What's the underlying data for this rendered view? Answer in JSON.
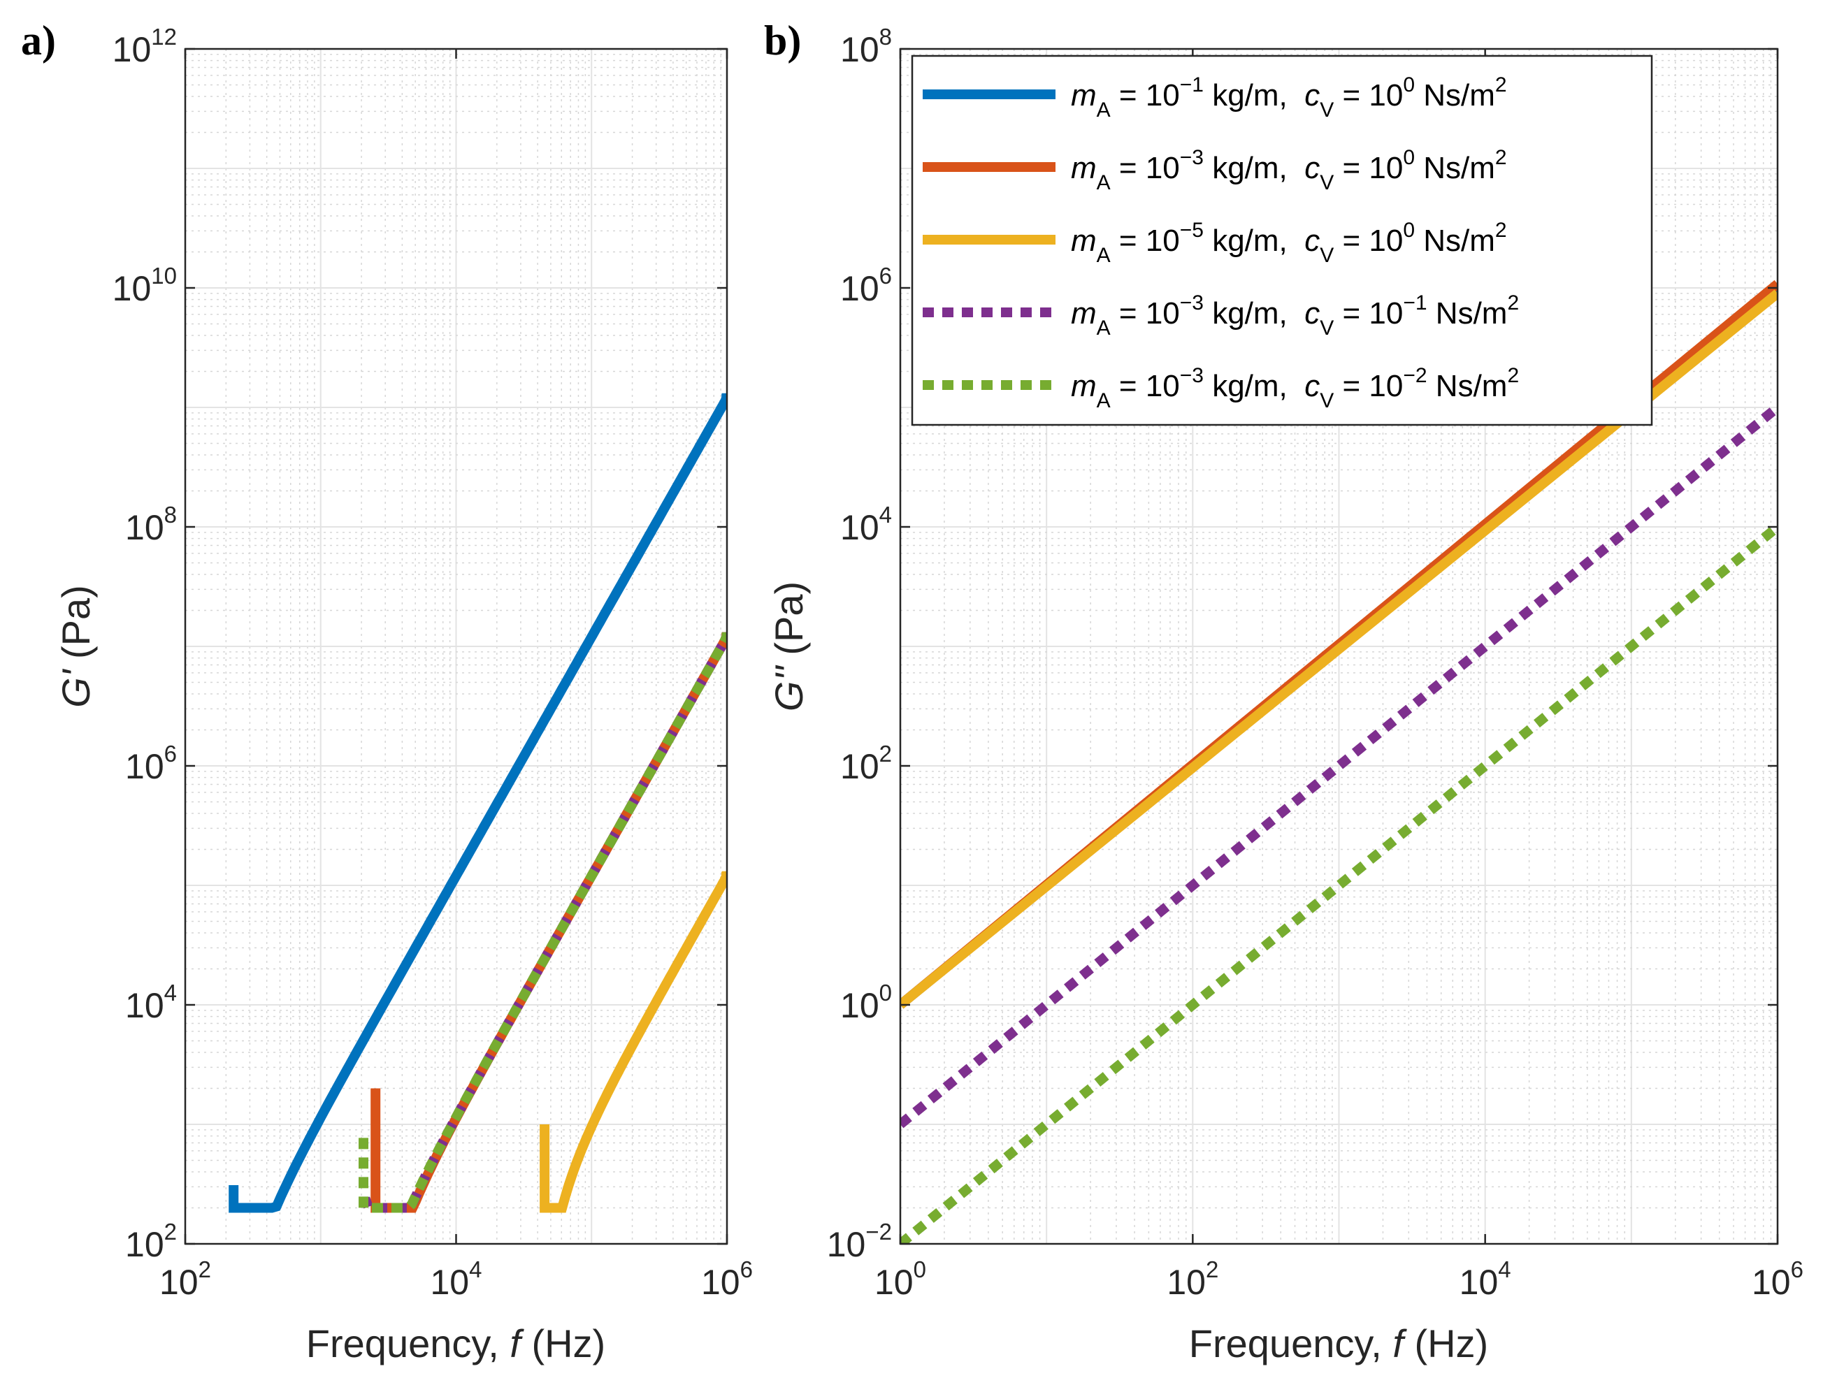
{
  "chart_data": [
    {
      "id": "a",
      "panel_label": "a)",
      "type": "line",
      "x_scale": "log",
      "y_scale": "log",
      "xlim": [
        100,
        1000000
      ],
      "ylim": [
        100,
        1000000000000
      ],
      "xlabel": {
        "text": "Frequency, ",
        "var": "f",
        "unit": " (Hz)"
      },
      "ylabel": {
        "var": "G'",
        "unit": " (Pa)"
      },
      "xticks": [
        {
          "base": "10",
          "exp": "2"
        },
        {
          "base": "10",
          "exp": "4"
        },
        {
          "base": "10",
          "exp": "6"
        }
      ],
      "yticks": [
        {
          "base": "10",
          "exp": "2"
        },
        {
          "base": "10",
          "exp": "4"
        },
        {
          "base": "10",
          "exp": "6"
        },
        {
          "base": "10",
          "exp": "8"
        },
        {
          "base": "10",
          "exp": "10"
        },
        {
          "base": "10",
          "exp": "12"
        }
      ],
      "grid": true,
      "series": [
        {
          "name": "mA=1e-1, cV=1e0",
          "color": "#0072BD",
          "dash": "solid",
          "A": 0.0012,
          "f0": 227.5,
          "x": [
            227.5,
            1000000
          ]
        },
        {
          "name": "mA=1e-3, cV=1e0",
          "color": "#D95319",
          "dash": "solid",
          "A": 1.2e-05,
          "f0": 2540,
          "x": [
            2540,
            1000000
          ]
        },
        {
          "name": "mA=1e-5, cV=1e0",
          "color": "#EDB120",
          "dash": "solid",
          "A": 1.2e-07,
          "f0": 45000,
          "x": [
            45000,
            1000000
          ]
        },
        {
          "name": "mA=1e-3, cV=1e-1",
          "color": "#7E2F8E",
          "dash": "dotted",
          "A": 1.2e-05,
          "f0": 2130,
          "x": [
            2130,
            1000000
          ]
        },
        {
          "name": "mA=1e-3, cV=1e-2",
          "color": "#77AC30",
          "dash": "dotted",
          "A": 1.2e-05,
          "f0": 2070,
          "x": [
            2070,
            1000000
          ]
        }
      ]
    },
    {
      "id": "b",
      "panel_label": "b)",
      "type": "line",
      "x_scale": "log",
      "y_scale": "log",
      "xlim": [
        1,
        1000000
      ],
      "ylim": [
        0.01,
        100000000
      ],
      "xlabel": {
        "text": "Frequency, ",
        "var": "f",
        "unit": " (Hz)"
      },
      "ylabel": {
        "var": "G''",
        "unit": " (Pa)"
      },
      "xticks": [
        {
          "base": "10",
          "exp": "0"
        },
        {
          "base": "10",
          "exp": "2"
        },
        {
          "base": "10",
          "exp": "4"
        },
        {
          "base": "10",
          "exp": "6"
        }
      ],
      "yticks": [
        {
          "base": "10",
          "exp": "−2"
        },
        {
          "base": "10",
          "exp": "0"
        },
        {
          "base": "10",
          "exp": "2"
        },
        {
          "base": "10",
          "exp": "4"
        },
        {
          "base": "10",
          "exp": "6"
        },
        {
          "base": "10",
          "exp": "8"
        }
      ],
      "grid": true,
      "series": [
        {
          "name": "mA=1e-1, cV=1e0",
          "color": "#0072BD",
          "dash": "solid",
          "x": [
            1,
            1000000
          ],
          "y": [
            1,
            1000000
          ]
        },
        {
          "name": "mA=1e-3, cV=1e0",
          "color": "#D95319",
          "dash": "solid",
          "x": [
            1,
            1000000
          ],
          "y": [
            1,
            1080000
          ]
        },
        {
          "name": "mA=1e-5, cV=1e0",
          "color": "#EDB120",
          "dash": "solid",
          "x": [
            1,
            1000000
          ],
          "y": [
            1,
            900000
          ]
        },
        {
          "name": "mA=1e-3, cV=1e-1",
          "color": "#7E2F8E",
          "dash": "dotted",
          "x": [
            1,
            1000000
          ],
          "y": [
            0.1,
            100000
          ]
        },
        {
          "name": "mA=1e-3, cV=1e-2",
          "color": "#77AC30",
          "dash": "dotted",
          "x": [
            1,
            1000000
          ],
          "y": [
            0.01,
            10000
          ]
        }
      ],
      "legend": {
        "location": "top-left",
        "entries": [
          {
            "color": "#0072BD",
            "dash": "solid",
            "m_sym": "m",
            "m_sub": "A",
            "m_eq": " = 10",
            "m_exp": "−1",
            "m_unit": " kg/m,",
            "c_sym": "c",
            "c_sub": "V",
            "c_eq": " = 10",
            "c_exp": "0",
            "c_unit": " Ns/m",
            "c_unit_exp": "2"
          },
          {
            "color": "#D95319",
            "dash": "solid",
            "m_sym": "m",
            "m_sub": "A",
            "m_eq": " = 10",
            "m_exp": "−3",
            "m_unit": " kg/m,",
            "c_sym": "c",
            "c_sub": "V",
            "c_eq": " = 10",
            "c_exp": "0",
            "c_unit": " Ns/m",
            "c_unit_exp": "2"
          },
          {
            "color": "#EDB120",
            "dash": "solid",
            "m_sym": "m",
            "m_sub": "A",
            "m_eq": " = 10",
            "m_exp": "−5",
            "m_unit": " kg/m,",
            "c_sym": "c",
            "c_sub": "V",
            "c_eq": " = 10",
            "c_exp": "0",
            "c_unit": " Ns/m",
            "c_unit_exp": "2"
          },
          {
            "color": "#7E2F8E",
            "dash": "dotted",
            "m_sym": "m",
            "m_sub": "A",
            "m_eq": " = 10",
            "m_exp": "−3",
            "m_unit": " kg/m,",
            "c_sym": "c",
            "c_sub": "V",
            "c_eq": " = 10",
            "c_exp": "−1",
            "c_unit": " Ns/m",
            "c_unit_exp": "2"
          },
          {
            "color": "#77AC30",
            "dash": "dotted",
            "m_sym": "m",
            "m_sub": "A",
            "m_eq": " = 10",
            "m_exp": "−3",
            "m_unit": " kg/m,",
            "c_sym": "c",
            "c_sub": "V",
            "c_eq": " = 10",
            "c_exp": "−2",
            "c_unit": " Ns/m",
            "c_unit_exp": "2"
          }
        ]
      }
    }
  ]
}
